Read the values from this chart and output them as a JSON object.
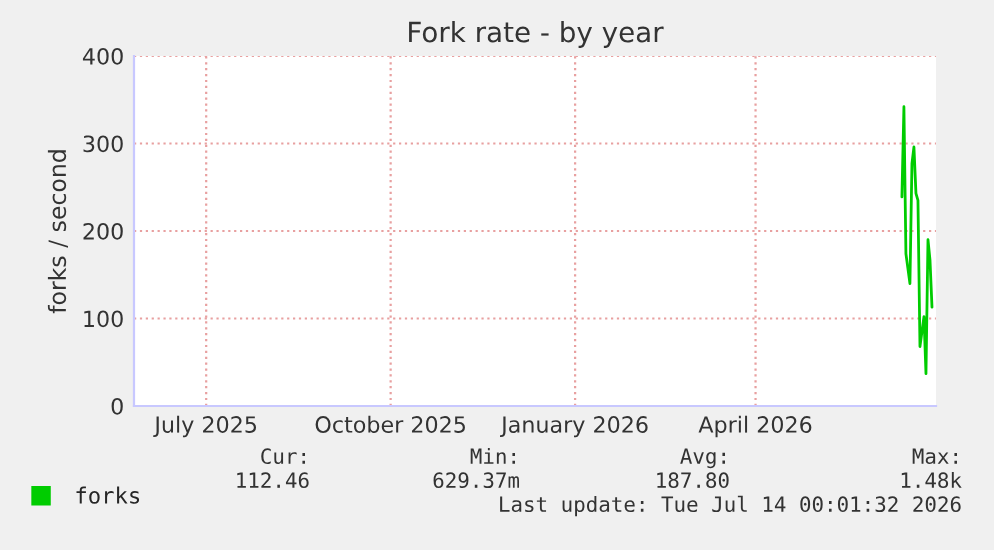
{
  "chart_data": {
    "type": "line",
    "title": "Fork rate - by year",
    "ylabel": "forks / second",
    "x": [
      "2026-06-27",
      "2026-06-28",
      "2026-06-29",
      "2026-07-01",
      "2026-07-02",
      "2026-07-03",
      "2026-07-04",
      "2026-07-05",
      "2026-07-06",
      "2026-07-08",
      "2026-07-09",
      "2026-07-10",
      "2026-07-11",
      "2026-07-12"
    ],
    "series": [
      {
        "name": "forks",
        "color": "#00cc00",
        "values": [
          239,
          342,
          174,
          140,
          277,
          296,
          243,
          235,
          68,
          102,
          37,
          190,
          167,
          113
        ]
      }
    ],
    "xlim": [
      "2025-06-09",
      "2026-07-14"
    ],
    "xticks": [
      {
        "value": "2025-07-15",
        "label": "July 2025"
      },
      {
        "value": "2025-10-15",
        "label": "October 2025"
      },
      {
        "value": "2026-01-15",
        "label": "January 2026"
      },
      {
        "value": "2026-04-15",
        "label": "April 2026"
      }
    ],
    "ylim": [
      0,
      400
    ],
    "yticks": [
      0,
      100,
      200,
      300,
      400
    ],
    "grid": true,
    "legend": "bottom left",
    "annotations": [
      "Cur:",
      "Min:",
      "Avg:",
      "Max:",
      "112.46",
      "629.37m",
      "187.80",
      "1.48k",
      "Last update: Tue Jul 14 00:01:32 2026"
    ]
  }
}
